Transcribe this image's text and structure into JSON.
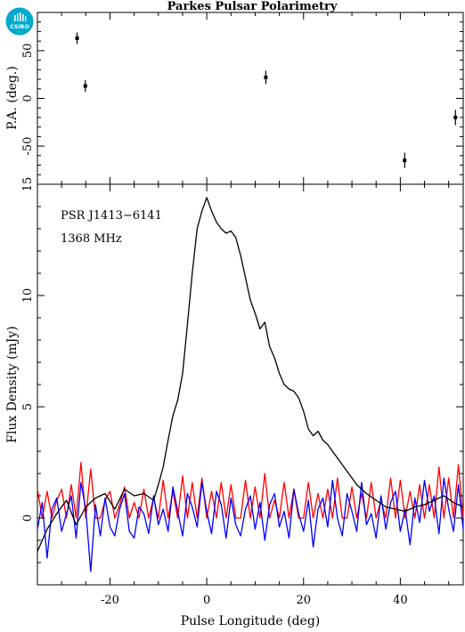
{
  "logo": {
    "text": "CSIRO",
    "color": "#00a9ce"
  },
  "chart_data": [
    {
      "type": "scatter",
      "title": "Parkes Pulsar Polarimetry",
      "xlabel": "",
      "ylabel": "P.A. (deg.)",
      "xlim": [
        -35,
        53
      ],
      "ylim": [
        -90,
        90
      ],
      "yticks": [
        -50,
        0,
        50
      ],
      "ytick_labels": [
        "-50",
        "0",
        "50"
      ],
      "grid": false,
      "points": [
        {
          "x": -26.8,
          "y": 63,
          "err": 6
        },
        {
          "x": -25.1,
          "y": 13,
          "err": 6
        },
        {
          "x": 12.2,
          "y": 22,
          "err": 7
        },
        {
          "x": 40.9,
          "y": -65,
          "err": 8
        },
        {
          "x": 51.4,
          "y": -20,
          "err": 8
        }
      ]
    },
    {
      "type": "line",
      "xlabel": "Pulse Longitude (deg)",
      "ylabel": "Flux Density (mJy)",
      "xlim": [
        -35,
        53
      ],
      "ylim": [
        -3,
        15
      ],
      "xticks": [
        -20,
        0,
        20,
        40
      ],
      "xtick_labels": [
        "-20",
        "0",
        "20",
        "40"
      ],
      "yticks": [
        0,
        5,
        10,
        15
      ],
      "ytick_labels": [
        "0",
        "5",
        "10",
        "15"
      ],
      "grid": false,
      "annotations": [
        "PSR J1413−6141",
        "1368 MHz"
      ],
      "series": [
        {
          "color": "#000000",
          "x": [
            -35,
            -33,
            -31,
            -29,
            -27,
            -25,
            -23,
            -21,
            -19,
            -17,
            -15,
            -13,
            -11,
            -10,
            -9,
            -8,
            -7,
            -6,
            -5,
            -4,
            -3,
            -2,
            -1,
            0,
            1,
            2,
            3,
            4,
            5,
            6,
            7,
            8,
            9,
            10,
            11,
            12,
            13,
            14,
            15,
            16,
            17,
            18,
            19,
            20,
            21,
            22,
            23,
            24,
            25,
            26,
            27,
            28,
            29,
            30,
            31,
            32,
            33,
            35,
            37,
            39,
            41,
            43,
            45,
            47,
            49,
            51,
            53
          ],
          "values": [
            -1.5,
            -0.5,
            0.2,
            0.8,
            -0.3,
            0.5,
            0.9,
            1.1,
            0.4,
            1.3,
            1.0,
            1.1,
            0.8,
            1.5,
            2.3,
            3.5,
            4.6,
            5.3,
            6.5,
            8.7,
            11.0,
            13.0,
            13.8,
            14.4,
            13.8,
            13.3,
            13.0,
            12.8,
            12.9,
            12.6,
            11.8,
            10.8,
            9.8,
            9.2,
            8.5,
            8.8,
            7.7,
            7.2,
            6.5,
            6.0,
            5.8,
            5.7,
            5.4,
            4.8,
            4.0,
            3.7,
            3.9,
            3.5,
            3.3,
            3.0,
            2.7,
            2.4,
            2.1,
            1.8,
            1.5,
            1.3,
            1.1,
            0.8,
            0.5,
            0.4,
            0.3,
            0.5,
            0.6,
            0.8,
            1.0,
            0.7,
            0.5
          ]
        },
        {
          "color": "#ff0000",
          "x": [
            -35,
            -34,
            -33,
            -32,
            -31,
            -30,
            -29,
            -28,
            -27,
            -26,
            -25,
            -24,
            -23,
            -22,
            -21,
            -20,
            -19,
            -18,
            -17,
            -16,
            -15,
            -14,
            -13,
            -12,
            -11,
            -10,
            -9,
            -8,
            -7,
            -6,
            -5,
            -4,
            -3,
            -2,
            -1,
            0,
            1,
            2,
            3,
            4,
            5,
            6,
            7,
            8,
            9,
            10,
            11,
            12,
            13,
            14,
            15,
            16,
            17,
            18,
            19,
            20,
            21,
            22,
            23,
            24,
            25,
            26,
            27,
            28,
            29,
            30,
            31,
            32,
            33,
            34,
            35,
            36,
            37,
            38,
            39,
            40,
            41,
            42,
            43,
            44,
            45,
            46,
            47,
            48,
            49,
            50,
            51,
            52,
            53
          ],
          "values": [
            1.3,
            0.0,
            1.2,
            0.0,
            0.8,
            1.3,
            0.0,
            1.5,
            0.0,
            2.5,
            0.0,
            2.2,
            0.0,
            0.0,
            0.8,
            1.2,
            0.0,
            0.6,
            1.4,
            0.0,
            0.7,
            0.0,
            1.3,
            0.0,
            0.9,
            0.0,
            1.7,
            0.0,
            1.2,
            0.0,
            1.9,
            0.0,
            1.6,
            0.0,
            1.8,
            0.0,
            1.2,
            0.0,
            1.6,
            0.0,
            1.5,
            0.0,
            0.0,
            1.7,
            0.0,
            1.4,
            0.0,
            2.0,
            0.0,
            0.8,
            0.0,
            1.6,
            0.0,
            1.3,
            0.0,
            0.0,
            1.6,
            0.0,
            1.1,
            0.0,
            1.3,
            0.0,
            1.8,
            0.0,
            0.0,
            1.4,
            0.0,
            1.1,
            0.0,
            1.6,
            0.0,
            0.8,
            0.0,
            1.8,
            0.0,
            1.7,
            0.0,
            1.2,
            0.0,
            1.5,
            0.0,
            1.5,
            0.0,
            2.3,
            0.0,
            1.8,
            0.0,
            2.4,
            0.0
          ]
        },
        {
          "color": "#0000ff",
          "x": [
            -35,
            -34,
            -33,
            -32,
            -31,
            -30,
            -29,
            -28,
            -27,
            -26,
            -25,
            -24,
            -23,
            -22,
            -21,
            -20,
            -19,
            -18,
            -17,
            -16,
            -15,
            -14,
            -13,
            -12,
            -11,
            -10,
            -9,
            -8,
            -7,
            -6,
            -5,
            -4,
            -3,
            -2,
            -1,
            0,
            1,
            2,
            3,
            4,
            5,
            6,
            7,
            8,
            9,
            10,
            11,
            12,
            13,
            14,
            15,
            16,
            17,
            18,
            19,
            20,
            21,
            22,
            23,
            24,
            25,
            26,
            27,
            28,
            29,
            30,
            31,
            32,
            33,
            34,
            35,
            36,
            37,
            38,
            39,
            40,
            41,
            42,
            43,
            44,
            45,
            46,
            47,
            48,
            49,
            50,
            51,
            52,
            53
          ],
          "values": [
            -0.5,
            0.7,
            -1.8,
            0.4,
            0.9,
            -0.6,
            0.2,
            1.0,
            -0.9,
            1.6,
            0.4,
            -2.4,
            0.6,
            -0.8,
            0.9,
            -0.4,
            -0.8,
            0.4,
            1.1,
            -0.6,
            -0.9,
            0.5,
            0.2,
            -0.7,
            1.0,
            -0.3,
            0.4,
            -0.6,
            1.4,
            0.3,
            -0.8,
            1.1,
            0.5,
            -0.4,
            1.6,
            0.3,
            -0.7,
            1.2,
            0.6,
            -0.9,
            0.9,
            -0.3,
            -0.8,
            0.4,
            1.0,
            -0.5,
            0.7,
            -1.0,
            0.6,
            1.1,
            -0.4,
            0.3,
            -0.9,
            1.3,
            0.2,
            -0.6,
            0.8,
            -1.3,
            0.4,
            0.9,
            -0.4,
            1.7,
            0.0,
            -0.8,
            1.1,
            0.3,
            -0.6,
            1.6,
            -0.3,
            0.2,
            -0.9,
            1.0,
            -0.5,
            0.7,
            1.2,
            -0.6,
            0.4,
            -1.2,
            0.9,
            -0.2,
            1.7,
            0.3,
            1.0,
            -0.7,
            1.8,
            0.4,
            -0.6,
            1.5,
            -0.5
          ]
        }
      ]
    }
  ]
}
